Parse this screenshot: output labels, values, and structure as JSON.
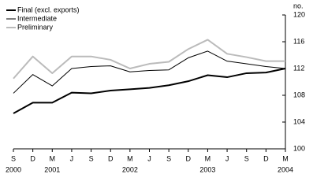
{
  "chart_data": {
    "type": "line",
    "y_unit": "no.",
    "categories": [
      "S",
      "D",
      "M",
      "J",
      "S",
      "D",
      "M",
      "J",
      "S",
      "D",
      "M",
      "J",
      "S",
      "D",
      "M"
    ],
    "x_year_labels": [
      "2000",
      null,
      "2001",
      null,
      null,
      null,
      "2002",
      null,
      null,
      null,
      "2003",
      null,
      null,
      null,
      "2004"
    ],
    "series": [
      {
        "name": "Final (excl. exports)",
        "color": "#000000",
        "width": 2,
        "values": [
          105.3,
          106.9,
          106.9,
          108.4,
          108.3,
          108.7,
          108.9,
          109.1,
          109.5,
          110.1,
          111.0,
          110.7,
          111.3,
          111.4,
          112.0
        ]
      },
      {
        "name": "Intermediate",
        "color": "#000000",
        "width": 1,
        "values": [
          108.3,
          111.1,
          109.4,
          112.0,
          112.3,
          112.4,
          111.5,
          111.7,
          111.8,
          113.6,
          114.6,
          113.1,
          112.7,
          112.3,
          112.0
        ]
      },
      {
        "name": "Preliminary",
        "color": "#bbbbbb",
        "width": 2,
        "values": [
          110.5,
          113.8,
          111.3,
          113.8,
          113.8,
          113.3,
          112.0,
          112.7,
          113.0,
          114.9,
          116.3,
          114.2,
          113.7,
          113.1,
          113.1
        ]
      }
    ],
    "ylim": [
      100,
      120
    ],
    "yticks": [
      100,
      104,
      108,
      112,
      116,
      120
    ],
    "legend": "top-left"
  }
}
